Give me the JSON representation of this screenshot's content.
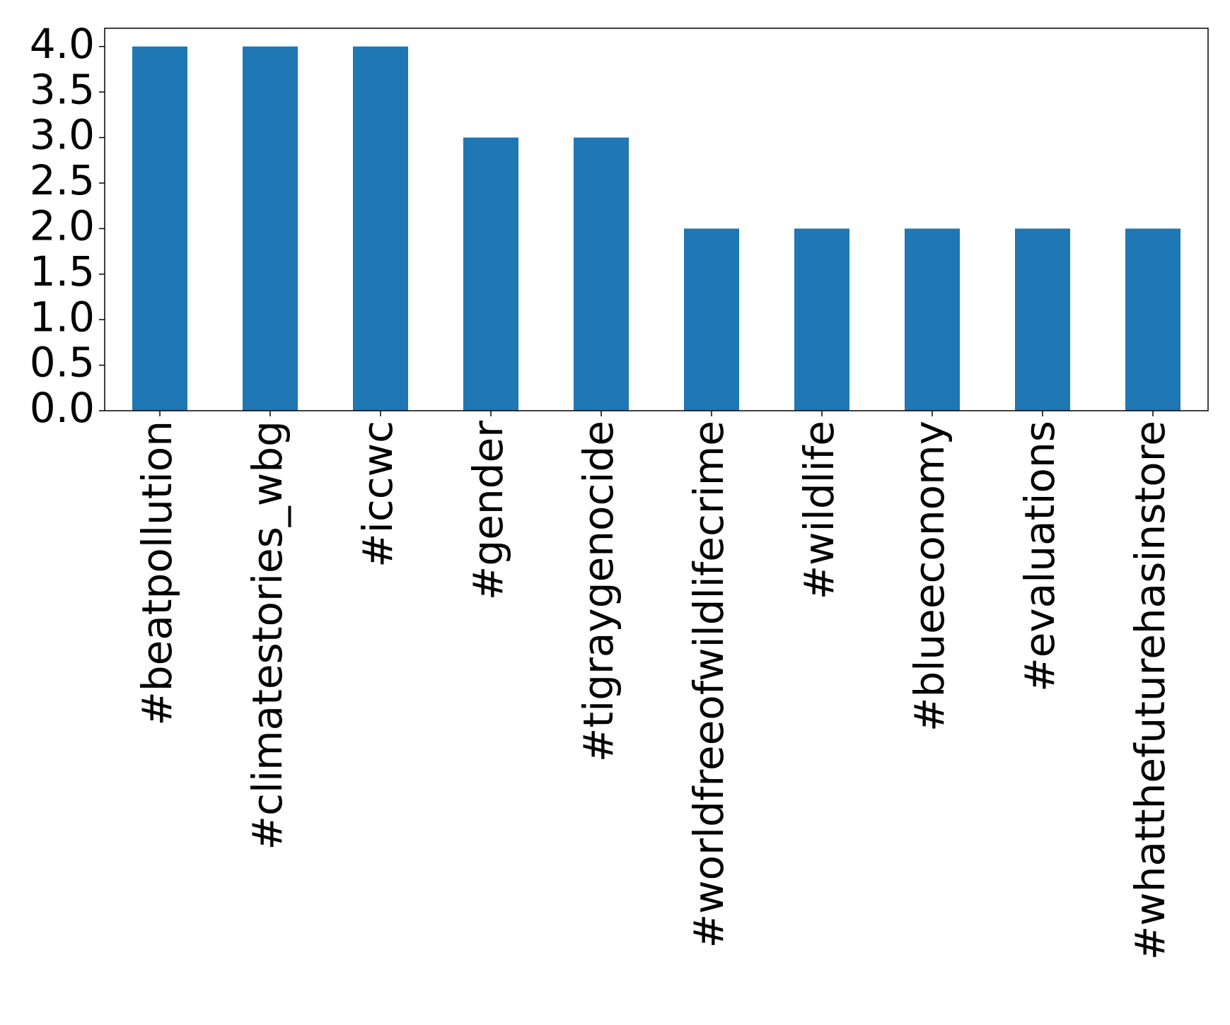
{
  "chart_data": {
    "type": "bar",
    "categories": [
      "#beatpollution",
      "#climatestories_wbg",
      "#iccwc",
      "#gender",
      "#tigraygenocide",
      "#worldfreeofwildlifecrime",
      "#wildlife",
      "#blueeconomy",
      "#evaluations",
      "#whatthefuturehasinstore"
    ],
    "values": [
      4,
      4,
      4,
      3,
      3,
      2,
      2,
      2,
      2,
      2
    ],
    "color": "#1f77b4",
    "ylim": [
      0,
      4.2
    ],
    "yticks": [
      {
        "value": 0,
        "label": "0.0"
      },
      {
        "value": 0.5,
        "label": "0.5"
      },
      {
        "value": 1,
        "label": "1.0"
      },
      {
        "value": 1.5,
        "label": "1.5"
      },
      {
        "value": 2,
        "label": "2.0"
      },
      {
        "value": 2.5,
        "label": "2.5"
      },
      {
        "value": 3,
        "label": "3.0"
      },
      {
        "value": 3.5,
        "label": "3.5"
      },
      {
        "value": 4,
        "label": "4.0"
      }
    ],
    "grid": false
  }
}
